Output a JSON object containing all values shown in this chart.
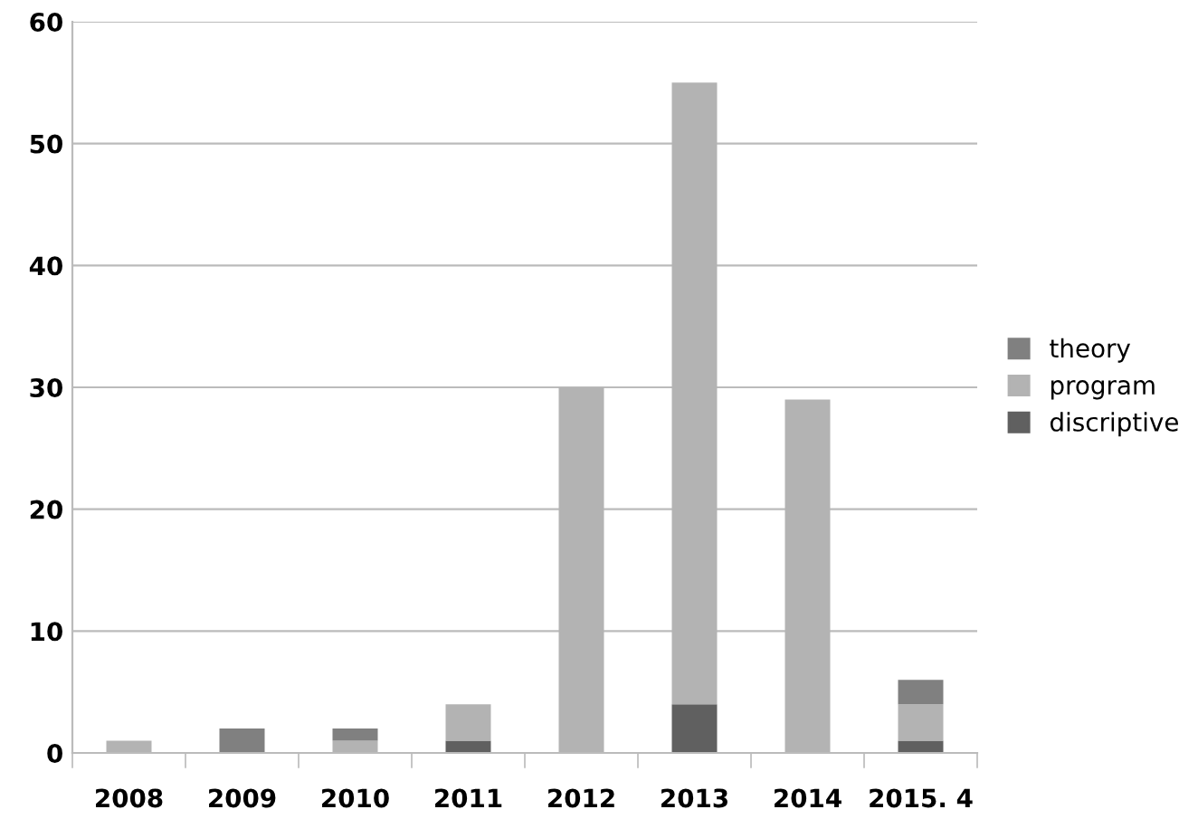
{
  "chart_data": {
    "type": "bar",
    "stacked": true,
    "categories": [
      "2008",
      "2009",
      "2010",
      "2011",
      "2012",
      "2013",
      "2014",
      "2015. 4"
    ],
    "series": [
      {
        "name": "discriptive",
        "color": "#606060",
        "values": [
          0,
          0,
          0,
          1,
          0,
          4,
          0,
          1
        ]
      },
      {
        "name": "program",
        "color": "#b3b3b3",
        "values": [
          1,
          0,
          1,
          3,
          30,
          51,
          29,
          3
        ]
      },
      {
        "name": "theory",
        "color": "#808080",
        "values": [
          0,
          2,
          1,
          0,
          0,
          0,
          0,
          2
        ]
      }
    ],
    "ylim": [
      0,
      60
    ],
    "yticks": [
      0,
      10,
      20,
      30,
      40,
      50,
      60
    ],
    "grid": "y",
    "legend": "right"
  }
}
